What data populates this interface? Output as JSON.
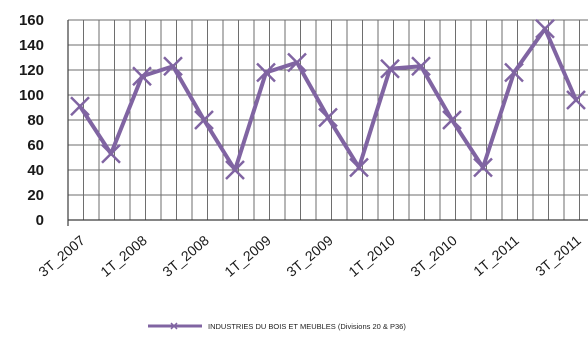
{
  "chart_data": {
    "type": "line",
    "title": "",
    "xlabel": "",
    "ylabel": "",
    "ylim": [
      0,
      160
    ],
    "yticks": [
      0,
      20,
      40,
      60,
      80,
      100,
      120,
      140,
      160
    ],
    "grid": true,
    "legend_position": "bottom",
    "x_tick_labels": [
      "3T_2007",
      "1T_2008",
      "3T_2008",
      "1T_2009",
      "3T_2009",
      "1T_2010",
      "3T_2010",
      "1T_2011",
      "3T_2011"
    ],
    "series": [
      {
        "name": "INDUSTRIES DU BOIS ET MEUBLES (Divisions 20 & P36)",
        "color": "#8064a2",
        "x": [
          "3T_2007",
          "4T_2007",
          "1T_2008",
          "2T_2008",
          "3T_2008",
          "4T_2008",
          "1T_2009",
          "2T_2009",
          "3T_2009",
          "4T_2009",
          "1T_2010",
          "2T_2010",
          "3T_2010",
          "4T_2010",
          "1T_2011",
          "2T_2011",
          "3T_2011"
        ],
        "values": [
          91,
          53,
          115,
          123,
          80,
          40,
          118,
          126,
          82,
          42,
          121,
          123,
          80,
          42,
          118,
          153,
          96
        ]
      }
    ]
  }
}
